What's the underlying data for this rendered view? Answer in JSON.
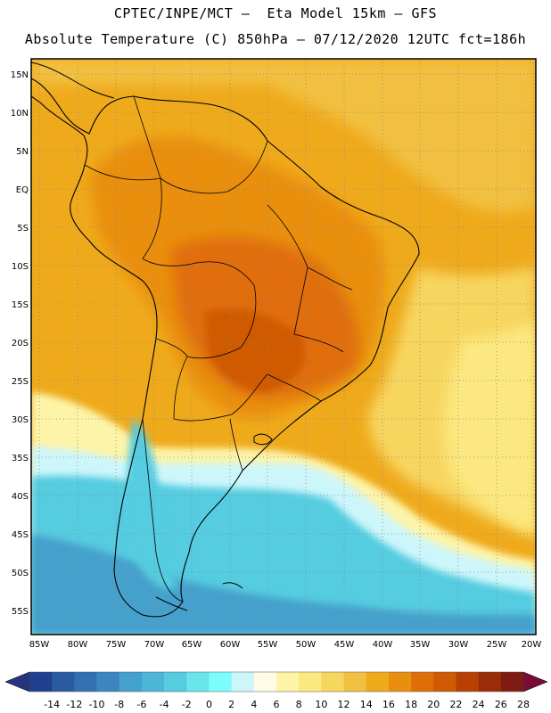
{
  "header": {
    "line1": "CPTEC/INPE/MCT –  Eta Model 15km – GFS",
    "line2": "Absolute Temperature (C) 850hPa – 07/12/2020 12UTC fct=186h"
  },
  "lat_labels": [
    "15N",
    "10N",
    "5N",
    "EQ",
    "5S",
    "10S",
    "15S",
    "20S",
    "25S",
    "30S",
    "35S",
    "40S",
    "45S",
    "50S",
    "55S"
  ],
  "lon_labels": [
    "85W",
    "80W",
    "75W",
    "70W",
    "65W",
    "60W",
    "55W",
    "50W",
    "45W",
    "40W",
    "35W",
    "30W",
    "25W",
    "20W"
  ],
  "colorbar": {
    "colors": [
      "#1f3f8f",
      "#2a5aa0",
      "#3370b2",
      "#3c86c0",
      "#44a0cc",
      "#4cb6d8",
      "#55cce0",
      "#6ae6ea",
      "#7dfcfc",
      "#cdf6fb",
      "#fffbe6",
      "#fdf4a8",
      "#fbe880",
      "#f7d660",
      "#f2c040",
      "#efaa1c",
      "#e98f10",
      "#e06e08",
      "#d05a04",
      "#b84004",
      "#9a2c08",
      "#7e1c14"
    ],
    "left_arrow": "#26337e",
    "right_arrow": "#7a0a38",
    "tick_labels": [
      "-14",
      "-12",
      "-10",
      "-8",
      "-6",
      "-4",
      "-2",
      "0",
      "2",
      "4",
      "6",
      "8",
      "10",
      "12",
      "14",
      "16",
      "18",
      "20",
      "22",
      "24",
      "26",
      "28"
    ]
  }
}
